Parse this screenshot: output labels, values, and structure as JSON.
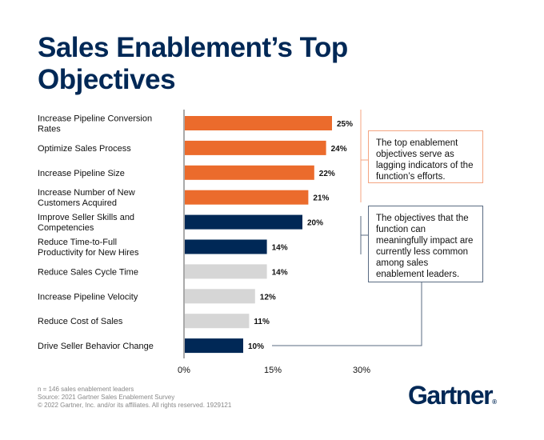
{
  "chart_data": {
    "type": "bar",
    "orientation": "horizontal",
    "title": "Sales Enablement’s Top Objectives",
    "categories": [
      "Increase Pipeline Conversion Rates",
      "Optimize Sales Process",
      "Increase Pipeline Size",
      "Increase Number of New Customers Acquired",
      "Improve Seller Skills and Competencies",
      "Reduce Time-to-Full Productivity for New Hires",
      "Reduce Sales Cycle Time",
      "Increase Pipeline Velocity",
      "Reduce Cost of Sales",
      "Drive Seller Behavior Change"
    ],
    "values": [
      25,
      24,
      22,
      21,
      20,
      14,
      14,
      12,
      11,
      10
    ],
    "value_labels": [
      "25%",
      "24%",
      "22%",
      "21%",
      "20%",
      "14%",
      "14%",
      "12%",
      "11%",
      "10%"
    ],
    "bar_colors": [
      "#eb6b2c",
      "#eb6b2c",
      "#eb6b2c",
      "#eb6b2c",
      "#002856",
      "#002856",
      "#d6d6d6",
      "#d6d6d6",
      "#d6d6d6",
      "#002856"
    ],
    "xlim": [
      0,
      30
    ],
    "xticks": [
      "0%",
      "15%",
      "30%"
    ],
    "grid": false
  },
  "annotations": [
    {
      "text": "The top enablement objectives serve as lagging indicators of the function’s efforts.",
      "color": "#f4a582"
    },
    {
      "text": "The objectives that the function can meaningfully impact are currently less common among sales enablement leaders.",
      "color": "#5a6b82"
    }
  ],
  "footer": [
    "n = 146 sales enablement leaders",
    "Source: 2021 Gartner Sales Enablement Survey",
    "© 2022 Gartner, Inc. and/or its affiliates. All rights reserved. 1929121"
  ],
  "logo": "Gartner"
}
